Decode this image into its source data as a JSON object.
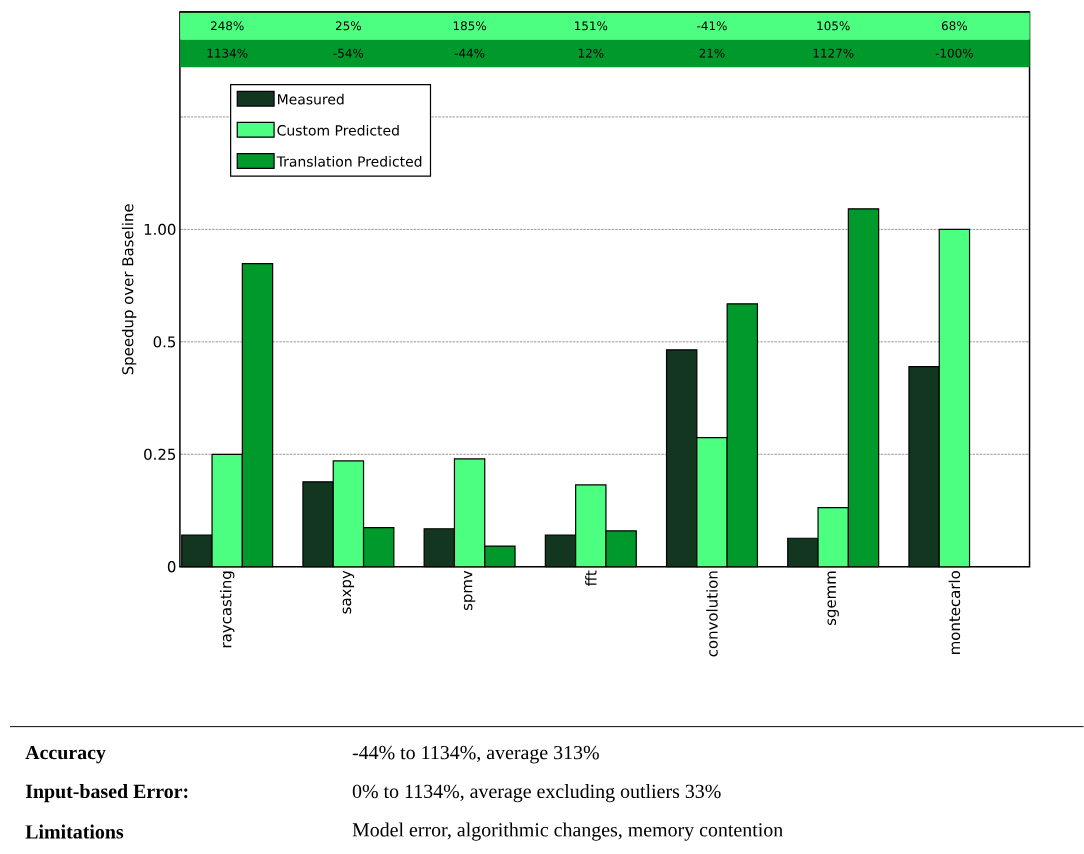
{
  "chart_data": {
    "type": "bar",
    "ylabel": "Speedup over Baseline",
    "categories": [
      "raycasting",
      "saxpy",
      "spmv",
      "fft",
      "convolution",
      "sgemm",
      "montecarlo"
    ],
    "series": [
      {
        "name": "Measured",
        "color": "#12361f",
        "values": [
          0.152,
          0.211,
          0.158,
          0.152,
          0.476,
          0.149,
          0.429
        ]
      },
      {
        "name": "Custom Predicted",
        "color": "#4dff80",
        "values": [
          0.25,
          0.24,
          0.243,
          0.207,
          0.277,
          0.18,
          1.0
        ]
      },
      {
        "name": "Translation Predicted",
        "color": "#00992b",
        "values": [
          0.81,
          0.159,
          0.142,
          0.156,
          0.632,
          1.135,
          null
        ]
      }
    ],
    "log": true,
    "ylim": [
      0.125,
      3.82
    ],
    "yticks": [
      {
        "value": 0.125,
        "label": "0"
      },
      0.25,
      0.5,
      {
        "value": 1,
        "label": "1.00"
      },
      {
        "value": 2,
        "label": null
      }
    ],
    "grid": "y",
    "legend": "top left",
    "annotations": [
      "248%",
      "25%",
      "185%",
      "151%",
      "-41%",
      "105%",
      "68%",
      "1134%",
      "-54%",
      "-44%",
      "12%",
      "21%",
      "1127%",
      "-100%",
      "Accuracy",
      "-44% to 1134%, average 313%",
      "Input-based Error:",
      "0% to 1134%, average excluding outliers 33%",
      "Limitations",
      "Model error, algorithmic changes, memory contention"
    ]
  }
}
